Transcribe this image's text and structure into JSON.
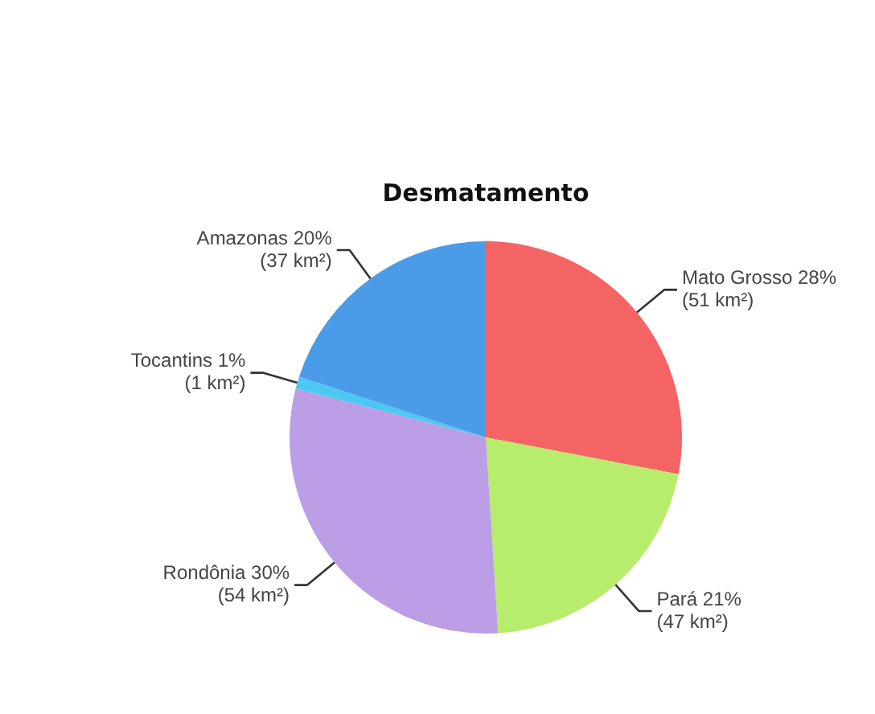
{
  "chart_data": {
    "type": "pie",
    "title": "Desmatamento",
    "categories": [
      "Mato Grosso",
      "Pará",
      "Rondônia",
      "Tocantins",
      "Amazonas"
    ],
    "values": [
      28,
      21,
      30,
      1,
      20
    ],
    "colors": [
      "#f46464",
      "#b8ec6c",
      "#bb9ee6",
      "#4cc8f2",
      "#4a9be8"
    ],
    "value_labels": [
      "28%\n(51 km²)",
      "21%\n(47 km²)",
      "30%\n(54 km²)",
      "1%\n(1 km²)",
      "20%\n(37 km²)"
    ],
    "legend": false
  }
}
